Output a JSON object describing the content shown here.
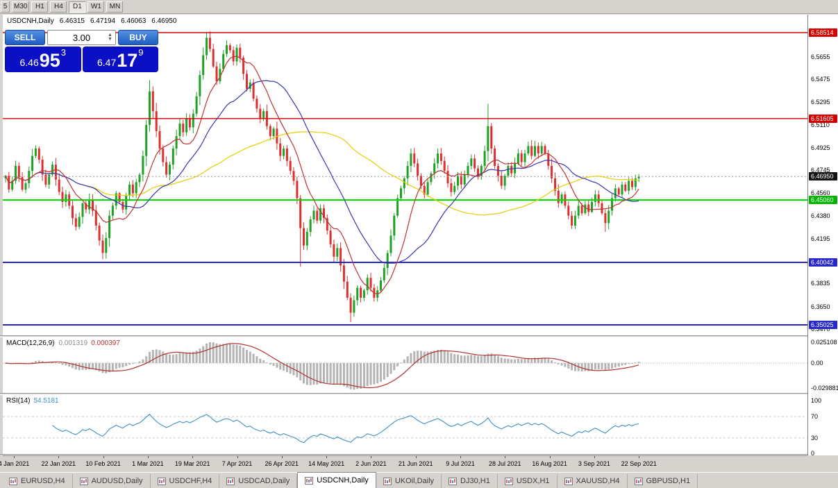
{
  "toolbar": {
    "timeframes": [
      {
        "label": "5",
        "active": false
      },
      {
        "label": "M30",
        "active": false
      },
      {
        "label": "H1",
        "active": false
      },
      {
        "label": "H4",
        "active": false
      },
      {
        "label": "D1",
        "active": true
      },
      {
        "label": "W1",
        "active": false
      },
      {
        "label": "MN",
        "active": false
      }
    ]
  },
  "chart_header": {
    "symbol": "USDCNH,Daily",
    "open": "6.46315",
    "high": "6.47194",
    "low": "6.46063",
    "close": "6.46950"
  },
  "trade_panel": {
    "sell_label": "SELL",
    "buy_label": "BUY",
    "volume": "3.00",
    "sell_price": {
      "big": "6.46",
      "huge": "95",
      "sup": "3"
    },
    "buy_price": {
      "big": "6.47",
      "huge": "17",
      "sup": "9"
    }
  },
  "price_axis": {
    "labels": [
      "6.5655",
      "6.5475",
      "6.5295",
      "6.5110",
      "6.4925",
      "6.4745",
      "6.4560",
      "6.4380",
      "6.4195",
      "6.3835",
      "6.3650",
      "6.3470"
    ],
    "badges": [
      {
        "text": "6.58514",
        "price": 6.58514,
        "color": "#d40000"
      },
      {
        "text": "6.51605",
        "price": 6.51605,
        "color": "#d40000"
      },
      {
        "text": "6.46950",
        "price": 6.4695,
        "color": "#151515"
      },
      {
        "text": "6.45060",
        "price": 6.4506,
        "color": "#00b400"
      },
      {
        "text": "6.40042",
        "price": 6.40042,
        "color": "#2828c8"
      },
      {
        "text": "6.35025",
        "price": 6.35025,
        "color": "#2828c8"
      }
    ]
  },
  "macd": {
    "label": "MACD(12,26,9)",
    "value_main": "0.001319",
    "value_signal": "0.000397",
    "axis_labels": [
      "0.025108",
      "0.00",
      "-0.029881"
    ]
  },
  "rsi": {
    "label": "RSI(14)",
    "value": "54.5181",
    "axis_labels": [
      "100",
      "70",
      "30",
      "0"
    ]
  },
  "date_axis": {
    "labels": [
      "4 Jan 2021",
      "22 Jan 2021",
      "10 Feb 2021",
      "1 Mar 2021",
      "19 Mar 2021",
      "7 Apr 2021",
      "26 Apr 2021",
      "14 May 2021",
      "2 Jun 2021",
      "21 Jun 2021",
      "9 Jul 2021",
      "28 Jul 2021",
      "16 Aug 2021",
      "3 Sep 2021",
      "22 Sep 2021"
    ]
  },
  "tabs": [
    {
      "label": "EURUSD,H4",
      "active": false
    },
    {
      "label": "AUDUSD,Daily",
      "active": false
    },
    {
      "label": "USDCHF,H4",
      "active": false
    },
    {
      "label": "USDCAD,Daily",
      "active": false
    },
    {
      "label": "USDCNH,Daily",
      "active": true
    },
    {
      "label": "UKOil,Daily",
      "active": false
    },
    {
      "label": "DJ30,H1",
      "active": false
    },
    {
      "label": "USDX,H1",
      "active": false
    },
    {
      "label": "XAUUSD,H4",
      "active": false
    },
    {
      "label": "GBPUSD,H1",
      "active": false
    }
  ],
  "chart_data": {
    "type": "candlestick",
    "symbol": "USDCNH",
    "timeframe": "Daily",
    "title": "USDCNH,Daily",
    "ohlc_current": {
      "open": 6.46315,
      "high": 6.47194,
      "low": 6.46063,
      "close": 6.4695
    },
    "ylim": [
      6.34185,
      6.59965
    ],
    "first_open": 6.468,
    "seed": 7,
    "closes": [
      6.47,
      6.459,
      6.466,
      6.478,
      6.469,
      6.459,
      6.464,
      6.474,
      6.486,
      6.492,
      6.483,
      6.471,
      6.463,
      6.471,
      6.479,
      6.467,
      6.457,
      6.449,
      6.455,
      6.446,
      6.436,
      6.429,
      6.437,
      6.448,
      6.443,
      6.451,
      6.442,
      6.43,
      6.418,
      6.408,
      6.42,
      6.438,
      6.446,
      6.456,
      6.449,
      6.443,
      6.454,
      6.463,
      6.456,
      6.465,
      6.471,
      6.486,
      6.511,
      6.538,
      6.522,
      6.506,
      6.492,
      6.481,
      6.471,
      6.479,
      6.492,
      6.502,
      6.512,
      6.505,
      6.516,
      6.509,
      6.52,
      6.534,
      6.551,
      6.567,
      6.581,
      6.572,
      6.558,
      6.546,
      6.556,
      6.568,
      6.575,
      6.571,
      6.562,
      6.573,
      6.565,
      6.552,
      6.54,
      6.545,
      6.532,
      6.524,
      6.516,
      6.522,
      6.51,
      6.502,
      6.508,
      6.496,
      6.486,
      6.492,
      6.482,
      6.474,
      6.466,
      6.452,
      6.428,
      6.414,
      6.425,
      6.435,
      6.442,
      6.434,
      6.444,
      6.436,
      6.426,
      6.415,
      6.405,
      6.412,
      6.398,
      6.385,
      6.372,
      6.36,
      6.37,
      6.38,
      6.372,
      6.378,
      6.388,
      6.38,
      6.372,
      6.378,
      6.386,
      6.396,
      6.408,
      6.422,
      6.438,
      6.452,
      6.46,
      6.468,
      6.478,
      6.488,
      6.48,
      6.47,
      6.462,
      6.455,
      6.465,
      6.472,
      6.48,
      6.488,
      6.482,
      6.474,
      6.464,
      6.457,
      6.462,
      6.47,
      6.463,
      6.471,
      6.478,
      6.484,
      6.476,
      6.47,
      6.478,
      6.49,
      6.51,
      6.492,
      6.478,
      6.47,
      6.462,
      6.47,
      6.478,
      6.472,
      6.48,
      6.488,
      6.481,
      6.488,
      6.494,
      6.486,
      6.494,
      6.488,
      6.494,
      6.488,
      6.478,
      6.468,
      6.458,
      6.448,
      6.455,
      6.446,
      6.438,
      6.43,
      6.438,
      6.446,
      6.44,
      6.447,
      6.441,
      6.449,
      6.455,
      6.448,
      6.44,
      6.432,
      6.442,
      6.452,
      6.46,
      6.455,
      6.463,
      6.458,
      6.466,
      6.461,
      6.468,
      6.4695
    ],
    "spikes": {
      "29": {
        "low": 6.403
      },
      "43": {
        "high": 6.547
      },
      "60": {
        "high": 6.5855
      },
      "88": {
        "low": 6.397
      },
      "103": {
        "low": 6.3525
      },
      "144": {
        "high": 6.528
      },
      "179": {
        "low": 6.425
      }
    },
    "levels": [
      {
        "price": 6.58514,
        "color": "#d40000",
        "width": 1.4
      },
      {
        "price": 6.51605,
        "color": "#d40000",
        "width": 1.4
      },
      {
        "price": 6.4506,
        "color": "#00d400",
        "width": 2
      },
      {
        "price": 6.40042,
        "color": "#2828c8",
        "width": 2
      },
      {
        "price": 6.35025,
        "color": "#2828c8",
        "width": 2
      }
    ],
    "current_price": 6.4695,
    "up_color": "#1fa125",
    "down_color": "#dd2f2f",
    "moving_averages": [
      {
        "period": 60,
        "color": "#e6ce00"
      },
      {
        "period": 25,
        "color": "#3434b4"
      },
      {
        "period": 10,
        "color": "#c03030"
      }
    ],
    "macd": {
      "fast": 12,
      "slow": 26,
      "signal": 9,
      "ylim": [
        -0.0361,
        0.0311
      ],
      "hist_color": "#b4b4b4",
      "signal_color": "#b03030"
    },
    "rsi": {
      "period": 14,
      "ylim": [
        0,
        110.4
      ],
      "color": "#3d8fc8",
      "levels": [
        70,
        30
      ]
    }
  }
}
